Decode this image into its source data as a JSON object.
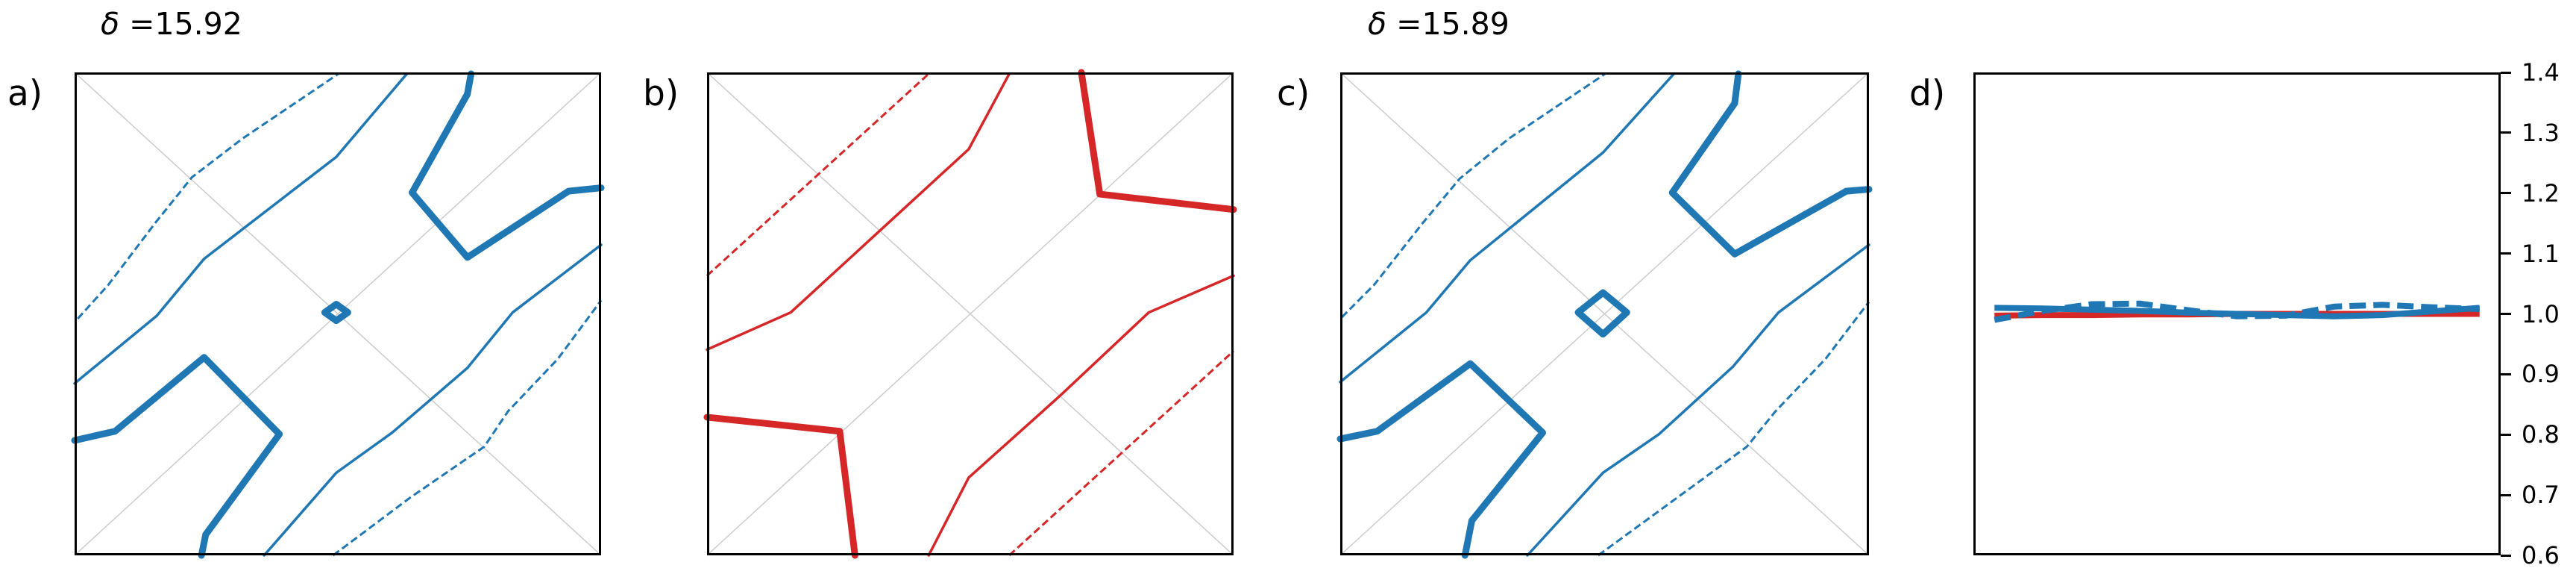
{
  "figure": {
    "titles": [
      {
        "symbol": "δ",
        "text": " =15.92"
      },
      {
        "symbol": "δ",
        "text": " =15.89"
      }
    ],
    "panel_labels": [
      "a)",
      "b)",
      "c)",
      "d)"
    ],
    "colors": {
      "blue": "#1f77b4",
      "red": "#d62728",
      "grid": "#cccccc",
      "frame": "#000000"
    }
  },
  "chart_data": [
    {
      "type": "line",
      "panel": "a)",
      "title": "δ =15.92",
      "description": "contour plot on unit square with diagonal guide lines",
      "color": "#1f77b4",
      "grid": "diagonals",
      "contours": [
        {
          "style": "dashed",
          "points": [
            [
              0.006,
              0.51
            ],
            [
              0.064,
              0.44
            ],
            [
              0.153,
              0.312
            ],
            [
              0.223,
              0.217
            ],
            [
              0.319,
              0.137
            ],
            [
              0.501,
              0.003
            ]
          ]
        },
        {
          "style": "thin",
          "points": [
            [
              0,
              0.644
            ],
            [
              0.156,
              0.504
            ],
            [
              0.246,
              0.386
            ],
            [
              0.497,
              0.175
            ],
            [
              0.631,
              0.003
            ]
          ]
        },
        {
          "style": "thick",
          "points": [
            [
              0.753,
              0.003
            ],
            [
              0.746,
              0.045
            ],
            [
              0.641,
              0.249
            ],
            [
              0.746,
              0.383
            ],
            [
              0.938,
              0.246
            ],
            [
              1,
              0.239
            ]
          ]
        },
        {
          "style": "thick",
          "closed": true,
          "points": [
            [
              0.497,
              0.48
            ],
            [
              0.519,
              0.497
            ],
            [
              0.497,
              0.514
            ],
            [
              0.475,
              0.497
            ]
          ]
        },
        {
          "style": "thick",
          "points": [
            [
              0,
              0.762
            ],
            [
              0.077,
              0.743
            ],
            [
              0.246,
              0.59
            ],
            [
              0.389,
              0.749
            ],
            [
              0.249,
              0.957
            ],
            [
              0.241,
              1
            ]
          ]
        },
        {
          "style": "thin",
          "points": [
            [
              0.36,
              1
            ],
            [
              0.497,
              0.829
            ],
            [
              0.603,
              0.746
            ],
            [
              0.746,
              0.612
            ],
            [
              0.832,
              0.497
            ],
            [
              1,
              0.357
            ]
          ]
        },
        {
          "style": "dashed",
          "points": [
            [
              0.491,
              1
            ],
            [
              0.638,
              0.88
            ],
            [
              0.778,
              0.775
            ],
            [
              0.823,
              0.702
            ],
            [
              0.918,
              0.593
            ],
            [
              1,
              0.472
            ]
          ]
        }
      ]
    },
    {
      "type": "line",
      "panel": "b)",
      "description": "contour plot on unit square with diagonal guide lines",
      "color": "#d62728",
      "grid": "diagonals",
      "contours": [
        {
          "style": "dashed",
          "points": [
            [
              0,
              0.421
            ],
            [
              0.421,
              0.003
            ]
          ]
        },
        {
          "style": "thin",
          "points": [
            [
              0,
              0.574
            ],
            [
              0.159,
              0.497
            ],
            [
              0.328,
              0.328
            ],
            [
              0.497,
              0.159
            ],
            [
              0.574,
              0.003
            ]
          ]
        },
        {
          "style": "thick",
          "points": [
            [
              0.711,
              0
            ],
            [
              0.746,
              0.252
            ],
            [
              1,
              0.284
            ]
          ]
        },
        {
          "style": "thick",
          "points": [
            [
              0,
              0.714
            ],
            [
              0.252,
              0.743
            ],
            [
              0.281,
              1
            ]
          ]
        },
        {
          "style": "thin",
          "points": [
            [
              0.421,
              1
            ],
            [
              0.497,
              0.839
            ],
            [
              0.67,
              0.67
            ],
            [
              0.839,
              0.497
            ],
            [
              1,
              0.421
            ]
          ]
        },
        {
          "style": "dashed",
          "points": [
            [
              0.574,
              1
            ],
            [
              1,
              0.577
            ]
          ]
        }
      ]
    },
    {
      "type": "line",
      "panel": "c)",
      "title": "δ =15.89",
      "description": "contour plot on unit square with diagonal guide lines",
      "color": "#1f77b4",
      "grid": "diagonals",
      "contours": [
        {
          "style": "dashed",
          "points": [
            [
              0.003,
              0.507
            ],
            [
              0.064,
              0.44
            ],
            [
              0.156,
              0.312
            ],
            [
              0.226,
              0.22
            ],
            [
              0.319,
              0.137
            ],
            [
              0.501,
              0.003
            ]
          ]
        },
        {
          "style": "thin",
          "points": [
            [
              0,
              0.641
            ],
            [
              0.163,
              0.497
            ],
            [
              0.246,
              0.389
            ],
            [
              0.497,
              0.166
            ],
            [
              0.631,
              0.003
            ]
          ]
        },
        {
          "style": "thick",
          "points": [
            [
              0.753,
              0.003
            ],
            [
              0.746,
              0.064
            ],
            [
              0.628,
              0.249
            ],
            [
              0.746,
              0.376
            ],
            [
              0.957,
              0.246
            ],
            [
              1,
              0.242
            ]
          ]
        },
        {
          "style": "thick",
          "closed": true,
          "points": [
            [
              0.497,
              0.456
            ],
            [
              0.542,
              0.497
            ],
            [
              0.497,
              0.542
            ],
            [
              0.45,
              0.497
            ]
          ]
        },
        {
          "style": "thick",
          "points": [
            [
              0,
              0.759
            ],
            [
              0.07,
              0.743
            ],
            [
              0.246,
              0.603
            ],
            [
              0.383,
              0.746
            ],
            [
              0.249,
              0.928
            ],
            [
              0.236,
              1
            ]
          ]
        },
        {
          "style": "thin",
          "points": [
            [
              0.354,
              1
            ],
            [
              0.497,
              0.829
            ],
            [
              0.603,
              0.749
            ],
            [
              0.743,
              0.609
            ],
            [
              0.829,
              0.497
            ],
            [
              1,
              0.357
            ]
          ]
        },
        {
          "style": "dashed",
          "points": [
            [
              0.488,
              1
            ],
            [
              0.638,
              0.88
            ],
            [
              0.769,
              0.775
            ],
            [
              0.823,
              0.702
            ],
            [
              0.918,
              0.593
            ],
            [
              1,
              0.475
            ]
          ]
        }
      ]
    },
    {
      "type": "line",
      "panel": "d)",
      "title": "",
      "xlabel": "",
      "ylabel": "",
      "y_axis_side": "right",
      "ylim": [
        0.6,
        1.4
      ],
      "yticks": [
        "1.4",
        "1.3",
        "1.2",
        "1.1",
        "1.0",
        "0.9",
        "0.8",
        "0.7",
        "0.6"
      ],
      "ytick_values": [
        1.4,
        1.3,
        1.2,
        1.1,
        1.0,
        0.9,
        0.8,
        0.7,
        0.6
      ],
      "x": [
        0.0,
        0.1,
        0.2,
        0.3,
        0.4,
        0.5,
        0.6,
        0.7,
        0.8,
        0.9,
        1.0
      ],
      "series": [
        {
          "name": "red-solid",
          "color": "#d62728",
          "style": "thick",
          "values": [
            0.997,
            0.998,
            0.998,
            0.999,
            0.999,
            1.0,
            1.0,
            1.0,
            1.0,
            1.0,
            1.0
          ]
        },
        {
          "name": "blue-solid",
          "color": "#1f77b4",
          "style": "thick",
          "values": [
            1.01,
            1.009,
            1.007,
            1.005,
            1.002,
            1.0,
            0.998,
            0.996,
            0.998,
            1.004,
            1.01
          ]
        },
        {
          "name": "blue-dashed",
          "color": "#1f77b4",
          "style": "thick-dashed",
          "values": [
            0.99,
            1.005,
            1.016,
            1.017,
            1.006,
            0.996,
            0.997,
            1.012,
            1.015,
            1.011,
            1.008
          ]
        }
      ]
    }
  ]
}
